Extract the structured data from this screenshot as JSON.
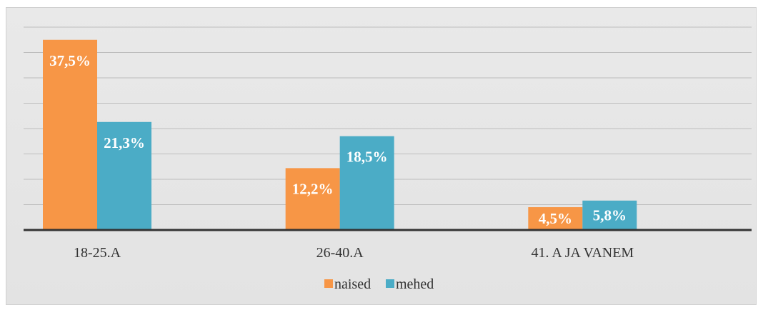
{
  "chart_data": {
    "type": "bar",
    "categories": [
      "18-25.A",
      "26-40.A",
      "41. A JA VANEM"
    ],
    "series": [
      {
        "name": "naised",
        "values": [
          37.5,
          12.2,
          4.5
        ],
        "labels": [
          "37,5%",
          "12,2%",
          "4,5%"
        ],
        "color": "#F79646"
      },
      {
        "name": "mehed",
        "values": [
          21.3,
          18.5,
          5.8
        ],
        "labels": [
          "21,3%",
          "18,5%",
          "5,8%"
        ],
        "color": "#4BACC6"
      }
    ],
    "ylim": [
      0,
      40
    ],
    "grid": true,
    "legend": "bottom",
    "title": "",
    "xlabel": "",
    "ylabel": ""
  }
}
